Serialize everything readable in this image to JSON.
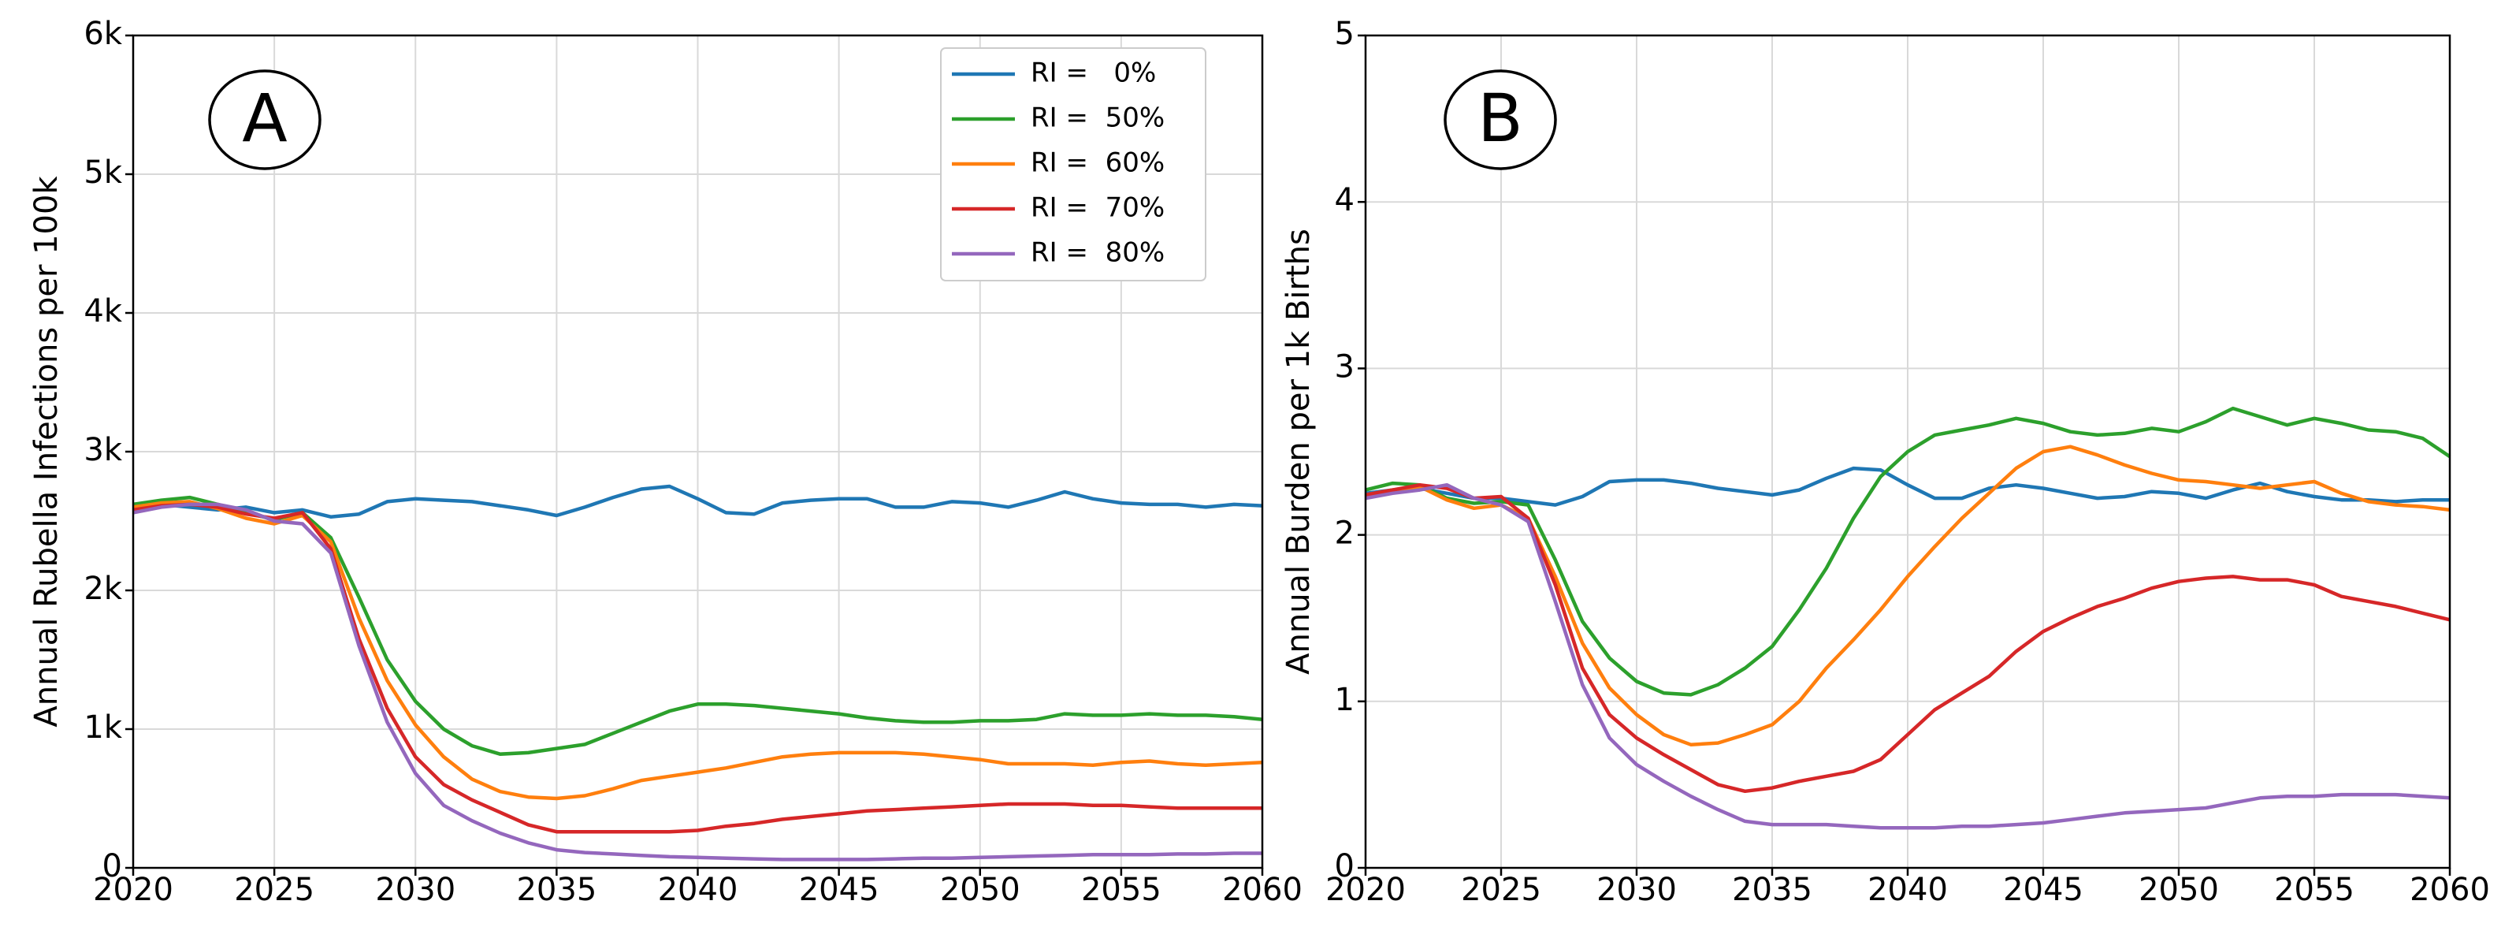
{
  "chart_data": [
    {
      "type": "line",
      "panel_label": "A",
      "ylabel": "Annual Rubella Infections per 100k",
      "legend": "upper right",
      "grid": true,
      "x": [
        2020,
        2021,
        2022,
        2023,
        2024,
        2025,
        2026,
        2027,
        2028,
        2029,
        2030,
        2031,
        2032,
        2033,
        2034,
        2035,
        2036,
        2037,
        2038,
        2039,
        2040,
        2041,
        2042,
        2043,
        2044,
        2045,
        2046,
        2047,
        2048,
        2049,
        2050,
        2051,
        2052,
        2053,
        2054,
        2055,
        2056,
        2057,
        2058,
        2059,
        2060
      ],
      "xlim": [
        2020,
        2060
      ],
      "xticks": [
        2020,
        2025,
        2030,
        2035,
        2040,
        2045,
        2050,
        2055,
        2060
      ],
      "ylim": [
        0,
        6000
      ],
      "yticks": [
        0,
        {
          "value": 1000,
          "label": "1k"
        },
        {
          "value": 2000,
          "label": "2k"
        },
        {
          "value": 3000,
          "label": "3k"
        },
        {
          "value": 4000,
          "label": "4k"
        },
        {
          "value": 5000,
          "label": "5k"
        },
        {
          "value": 6000,
          "label": "6k"
        }
      ],
      "series": [
        {
          "name": "RI =   0%",
          "color": "#1f77b4",
          "values": [
            2600,
            2620,
            2600,
            2580,
            2600,
            2560,
            2580,
            2530,
            2550,
            2640,
            2660,
            2650,
            2640,
            2610,
            2580,
            2540,
            2600,
            2670,
            2730,
            2750,
            2660,
            2560,
            2550,
            2630,
            2650,
            2660,
            2660,
            2600,
            2600,
            2640,
            2630,
            2600,
            2650,
            2710,
            2660,
            2630,
            2620,
            2620,
            2600,
            2620,
            2610
          ]
        },
        {
          "name": "RI =  50%",
          "color": "#2ca02c",
          "values": [
            2620,
            2650,
            2670,
            2620,
            2560,
            2510,
            2560,
            2380,
            1950,
            1500,
            1200,
            1000,
            880,
            820,
            830,
            860,
            890,
            970,
            1050,
            1130,
            1180,
            1180,
            1170,
            1150,
            1130,
            1110,
            1080,
            1060,
            1050,
            1050,
            1060,
            1060,
            1070,
            1110,
            1100,
            1100,
            1110,
            1100,
            1100,
            1090,
            1070
          ]
        },
        {
          "name": "RI =  60%",
          "color": "#ff7f0e",
          "values": [
            2600,
            2630,
            2640,
            2590,
            2520,
            2480,
            2540,
            2350,
            1800,
            1350,
            1030,
            800,
            640,
            550,
            510,
            500,
            520,
            570,
            630,
            660,
            690,
            720,
            760,
            800,
            820,
            830,
            830,
            830,
            820,
            800,
            780,
            750,
            750,
            750,
            740,
            760,
            770,
            750,
            740,
            750,
            760
          ]
        },
        {
          "name": "RI =  70%",
          "color": "#d62728",
          "values": [
            2580,
            2610,
            2620,
            2600,
            2550,
            2520,
            2560,
            2300,
            1650,
            1150,
            800,
            600,
            490,
            400,
            310,
            260,
            260,
            260,
            260,
            260,
            270,
            300,
            320,
            350,
            370,
            390,
            410,
            420,
            430,
            440,
            450,
            460,
            460,
            460,
            450,
            450,
            440,
            430,
            430,
            430,
            430
          ]
        },
        {
          "name": "RI =  80%",
          "color": "#9467bd",
          "values": [
            2560,
            2600,
            2620,
            2620,
            2580,
            2500,
            2480,
            2270,
            1600,
            1050,
            680,
            450,
            340,
            250,
            180,
            130,
            110,
            100,
            90,
            80,
            75,
            70,
            65,
            60,
            60,
            60,
            60,
            65,
            70,
            70,
            75,
            80,
            85,
            90,
            95,
            95,
            95,
            100,
            100,
            105,
            105
          ]
        }
      ]
    },
    {
      "type": "line",
      "panel_label": "B",
      "ylabel": "Annual Burden per 1k Births",
      "grid": true,
      "x": [
        2020,
        2021,
        2022,
        2023,
        2024,
        2025,
        2026,
        2027,
        2028,
        2029,
        2030,
        2031,
        2032,
        2033,
        2034,
        2035,
        2036,
        2037,
        2038,
        2039,
        2040,
        2041,
        2042,
        2043,
        2044,
        2045,
        2046,
        2047,
        2048,
        2049,
        2050,
        2051,
        2052,
        2053,
        2054,
        2055,
        2056,
        2057,
        2058,
        2059,
        2060
      ],
      "xlim": [
        2020,
        2060
      ],
      "xticks": [
        2020,
        2025,
        2030,
        2035,
        2040,
        2045,
        2050,
        2055,
        2060
      ],
      "ylim": [
        0,
        5
      ],
      "yticks": [
        0,
        1,
        2,
        3,
        4,
        5
      ],
      "series": [
        {
          "color": "#1f77b4",
          "values": [
            2.25,
            2.27,
            2.28,
            2.25,
            2.22,
            2.22,
            2.2,
            2.18,
            2.23,
            2.32,
            2.33,
            2.33,
            2.31,
            2.28,
            2.26,
            2.24,
            2.27,
            2.34,
            2.4,
            2.39,
            2.3,
            2.22,
            2.22,
            2.28,
            2.3,
            2.28,
            2.25,
            2.22,
            2.23,
            2.26,
            2.25,
            2.22,
            2.27,
            2.31,
            2.26,
            2.23,
            2.21,
            2.21,
            2.2,
            2.21,
            2.21
          ]
        },
        {
          "color": "#2ca02c",
          "values": [
            2.27,
            2.31,
            2.3,
            2.22,
            2.19,
            2.2,
            2.18,
            1.85,
            1.48,
            1.26,
            1.12,
            1.05,
            1.04,
            1.1,
            1.2,
            1.33,
            1.55,
            1.8,
            2.1,
            2.35,
            2.5,
            2.6,
            2.63,
            2.66,
            2.7,
            2.67,
            2.62,
            2.6,
            2.61,
            2.64,
            2.62,
            2.68,
            2.76,
            2.71,
            2.66,
            2.7,
            2.67,
            2.63,
            2.62,
            2.58,
            2.47
          ]
        },
        {
          "color": "#ff7f0e",
          "values": [
            2.24,
            2.27,
            2.29,
            2.21,
            2.16,
            2.18,
            2.1,
            1.75,
            1.35,
            1.08,
            0.92,
            0.8,
            0.74,
            0.75,
            0.8,
            0.86,
            1.0,
            1.2,
            1.37,
            1.55,
            1.75,
            1.93,
            2.1,
            2.25,
            2.4,
            2.5,
            2.53,
            2.48,
            2.42,
            2.37,
            2.33,
            2.32,
            2.3,
            2.28,
            2.3,
            2.32,
            2.25,
            2.2,
            2.18,
            2.17,
            2.15
          ]
        },
        {
          "color": "#d62728",
          "values": [
            2.24,
            2.27,
            2.3,
            2.28,
            2.22,
            2.23,
            2.1,
            1.7,
            1.2,
            0.92,
            0.78,
            0.68,
            0.59,
            0.5,
            0.46,
            0.48,
            0.52,
            0.55,
            0.58,
            0.65,
            0.8,
            0.95,
            1.05,
            1.15,
            1.3,
            1.42,
            1.5,
            1.57,
            1.62,
            1.68,
            1.72,
            1.74,
            1.75,
            1.73,
            1.73,
            1.7,
            1.63,
            1.6,
            1.57,
            1.53,
            1.49
          ]
        },
        {
          "color": "#9467bd",
          "values": [
            2.22,
            2.25,
            2.27,
            2.3,
            2.22,
            2.18,
            2.08,
            1.6,
            1.1,
            0.78,
            0.62,
            0.52,
            0.43,
            0.35,
            0.28,
            0.26,
            0.26,
            0.26,
            0.25,
            0.24,
            0.24,
            0.24,
            0.25,
            0.25,
            0.26,
            0.27,
            0.29,
            0.31,
            0.33,
            0.34,
            0.35,
            0.36,
            0.39,
            0.42,
            0.43,
            0.43,
            0.44,
            0.44,
            0.44,
            0.43,
            0.42
          ]
        }
      ]
    }
  ]
}
